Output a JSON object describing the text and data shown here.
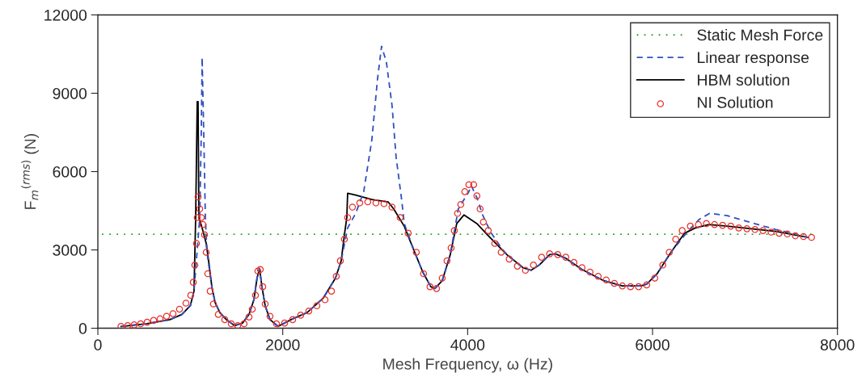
{
  "chart_data": {
    "type": "line",
    "xlabel": "Mesh Frequency, ω (Hz)",
    "ylabel": "F$_{m}$$^{(rms)}$ (N)",
    "xlim": [
      0,
      8000
    ],
    "xticks": [
      0,
      2000,
      4000,
      6000,
      8000
    ],
    "ylim": [
      0,
      12000
    ],
    "yticks": [
      0,
      3000,
      6000,
      9000,
      12000
    ],
    "grid": false,
    "legend": "top right",
    "series": [
      {
        "name": "Static Mesh Force",
        "color": "#2ca02c",
        "line_style": "dotted",
        "marker": "none",
        "x": [
          7720,
          0
        ],
        "values": [
          3600,
          3600
        ]
      },
      {
        "name": "Linear response",
        "color": "#3050c0",
        "line_style": "dashed",
        "marker": "none",
        "x": [
          250,
          520,
          780,
          910,
          1000,
          1040,
          1102,
          1119,
          1128,
          1145,
          1163,
          1180,
          1233,
          1268,
          1320,
          1390,
          1478,
          1565,
          1635,
          1688,
          1722,
          1749,
          1775,
          1810,
          1862,
          1950,
          2090,
          2264,
          2439,
          2570,
          2632,
          2702,
          2789,
          2876,
          2964,
          3025,
          3069,
          3121,
          3182,
          3226,
          3287,
          3314,
          3427,
          3515,
          3602,
          3646,
          3725,
          3812,
          3899,
          4013,
          4039,
          4100,
          4162,
          4249,
          4363,
          4424,
          4599,
          4686,
          4774,
          4887,
          4949,
          5062,
          5237,
          5473,
          5674,
          5875,
          5937,
          6050,
          6199,
          6374,
          6505,
          6618,
          6811,
          7073,
          7335,
          7571,
          7685
        ],
        "values": [
          70,
          170,
          330,
          530,
          860,
          1420,
          4240,
          7550,
          10370,
          7550,
          4240,
          2910,
          1590,
          990,
          600,
          330,
          100,
          200,
          530,
          1090,
          1920,
          2290,
          1590,
          860,
          330,
          70,
          330,
          600,
          1160,
          1920,
          2580,
          3840,
          4400,
          5230,
          7220,
          9540,
          10800,
          10200,
          8540,
          6560,
          4900,
          4010,
          2910,
          2150,
          1590,
          1520,
          1820,
          2820,
          4570,
          5230,
          5460,
          5000,
          4340,
          3680,
          3080,
          2820,
          2320,
          2220,
          2420,
          2820,
          2850,
          2680,
          2250,
          1820,
          1620,
          1620,
          1690,
          2090,
          2910,
          3680,
          4170,
          4400,
          4310,
          4040,
          3780,
          3580,
          3480
        ]
      },
      {
        "name": "HBM solution",
        "color": "#000000",
        "line_style": "solid",
        "marker": "none",
        "x": [
          250,
          520,
          780,
          910,
          1000,
          1040,
          1058,
          1075,
          1084,
          1093,
          1128,
          1172,
          1198,
          1233,
          1268,
          1320,
          1390,
          1478,
          1565,
          1635,
          1688,
          1722,
          1749,
          1775,
          1810,
          1862,
          1950,
          2090,
          2264,
          2439,
          2570,
          2632,
          2667,
          2693,
          2702,
          2789,
          2964,
          3139,
          3200,
          3314,
          3427,
          3515,
          3602,
          3646,
          3725,
          3812,
          3882,
          3961,
          4100,
          4214,
          4424,
          4599,
          4686,
          4774,
          4887,
          4949,
          5062,
          5237,
          5473,
          5674,
          5875,
          5937,
          6050,
          6199,
          6347,
          6461,
          6610,
          6811,
          7073,
          7335,
          7685
        ],
        "values": [
          70,
          170,
          330,
          530,
          860,
          1420,
          4240,
          8680,
          8680,
          4240,
          3840,
          3250,
          2580,
          1590,
          990,
          600,
          330,
          100,
          200,
          530,
          1090,
          1920,
          2290,
          1590,
          860,
          330,
          70,
          330,
          600,
          1160,
          1920,
          2580,
          3580,
          4240,
          5170,
          5100,
          4930,
          4840,
          4570,
          3910,
          2910,
          2150,
          1590,
          1520,
          1820,
          2820,
          4010,
          4340,
          4010,
          3580,
          2820,
          2320,
          2220,
          2420,
          2820,
          2850,
          2680,
          2250,
          1820,
          1620,
          1620,
          1690,
          2090,
          2910,
          3640,
          3840,
          3970,
          3910,
          3810,
          3710,
          3480
        ]
      },
      {
        "name": "NI Solution",
        "type": "scatter",
        "color": "#e8302a",
        "marker": "circle",
        "x": [
          250,
          323,
          393,
          463,
          533,
          603,
          673,
          743,
          813,
          883,
          953,
          1005,
          1032,
          1049,
          1067,
          1075,
          1084,
          1102,
          1119,
          1137,
          1154,
          1172,
          1189,
          1215,
          1250,
          1303,
          1373,
          1443,
          1513,
          1582,
          1635,
          1670,
          1705,
          1731,
          1757,
          1784,
          1810,
          1862,
          1932,
          2020,
          2107,
          2194,
          2282,
          2369,
          2457,
          2527,
          2579,
          2623,
          2667,
          2702,
          2754,
          2833,
          2920,
          3008,
          3095,
          3182,
          3270,
          3357,
          3445,
          3523,
          3593,
          3663,
          3725,
          3777,
          3821,
          3856,
          3891,
          3926,
          3969,
          4013,
          4065,
          4100,
          4135,
          4170,
          4223,
          4293,
          4363,
          4450,
          4538,
          4625,
          4712,
          4800,
          4887,
          4975,
          5062,
          5150,
          5237,
          5324,
          5412,
          5499,
          5587,
          5674,
          5762,
          5849,
          5937,
          6024,
          6111,
          6181,
          6251,
          6321,
          6409,
          6496,
          6583,
          6671,
          6758,
          6846,
          6933,
          7021,
          7108,
          7195,
          7283,
          7370,
          7458,
          7545,
          7633,
          7720
        ],
        "values": [
          70,
          100,
          130,
          170,
          230,
          300,
          360,
          460,
          560,
          730,
          960,
          1260,
          1760,
          2420,
          3250,
          4240,
          5030,
          4570,
          4240,
          3970,
          3580,
          2910,
          2090,
          1420,
          930,
          530,
          330,
          170,
          100,
          170,
          430,
          730,
          1260,
          2190,
          2250,
          1590,
          930,
          460,
          170,
          200,
          330,
          500,
          660,
          860,
          1090,
          1420,
          1990,
          2580,
          3410,
          4240,
          4640,
          4800,
          4840,
          4800,
          4770,
          4640,
          4240,
          3640,
          2910,
          2090,
          1590,
          1520,
          1920,
          2580,
          3080,
          3740,
          4400,
          4740,
          5230,
          5500,
          5500,
          5070,
          4570,
          4070,
          3740,
          3250,
          2910,
          2650,
          2380,
          2220,
          2420,
          2720,
          2850,
          2820,
          2720,
          2520,
          2320,
          2150,
          1990,
          1850,
          1720,
          1620,
          1590,
          1590,
          1660,
          1920,
          2420,
          2910,
          3410,
          3740,
          3910,
          3970,
          4010,
          3970,
          3940,
          3910,
          3840,
          3810,
          3780,
          3740,
          3680,
          3640,
          3610,
          3540,
          3510,
          3480
        ]
      }
    ]
  }
}
